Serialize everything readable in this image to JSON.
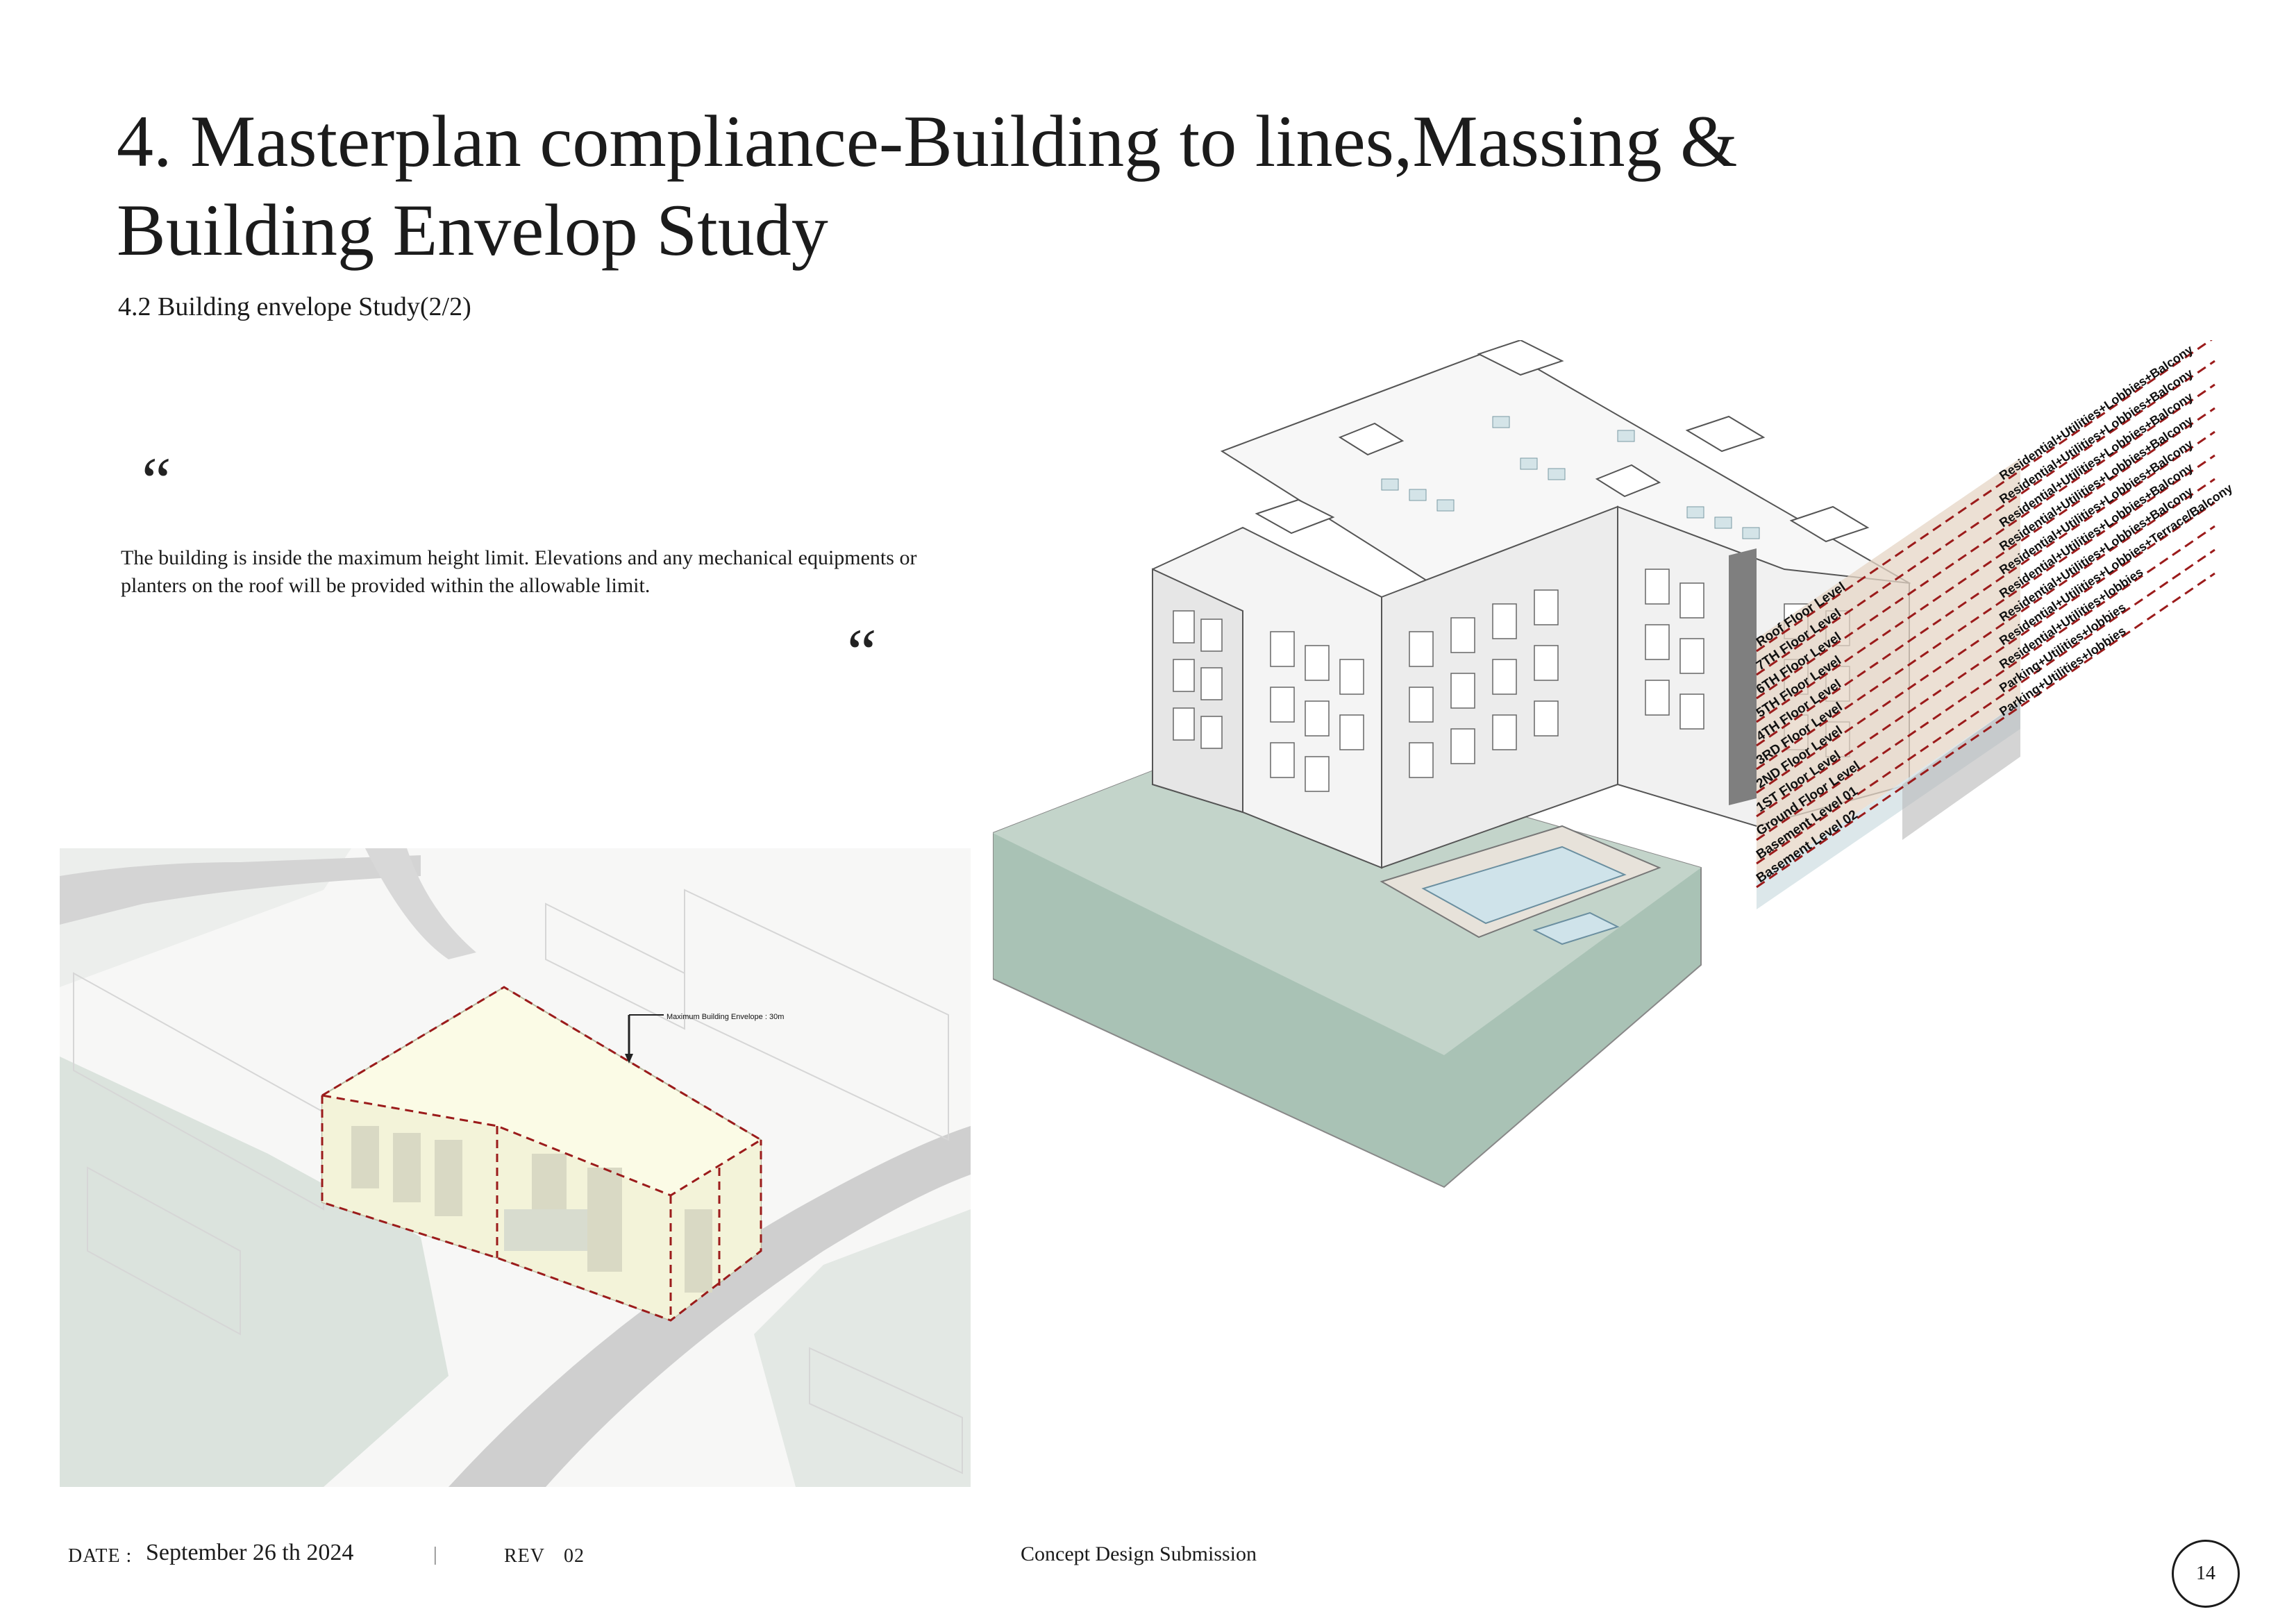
{
  "page": {
    "title_line1": "4. Masterplan compliance-Building to lines,Massing &",
    "title_line2": "Building Envelop Study",
    "subtitle": "4.2  Building envelope Study(2/2)",
    "quote_open": "“",
    "quote_close": "“",
    "body_text": "The building is inside the maximum height limit. Elevations and any mechanical equipments or planters on the roof will be provided within the allowable limit."
  },
  "left_drawing": {
    "envelope_label": "Maximum Building Envelope : 30m"
  },
  "right_drawing": {
    "floor_levels": [
      "Roof Floor Level",
      "7TH Floor Level",
      "6TH Floor Level",
      "5TH Floor Level",
      "4TH Floor Level",
      "3RD Floor Level",
      "2ND Floor Level",
      "1ST Floor Level",
      "Ground Floor Level",
      "Basement Level 01",
      "Basement Level 02"
    ],
    "uses": [
      "Residential+Utilities+Lobbies+Balcony",
      "Residential+Utilities+Lobbies+Balcony",
      "Residential+Utilities+Lobbies+Balcony",
      "Residential+Utilities+Lobbies+Balcony",
      "Residential+Utilities+Lobbies+Balcony",
      "Residential+Utilities+Lobbies+Balcony",
      "Residential+Utilities+Lobbies+Balcony",
      "Residential+Utilities+Lobbies+Terrace/Balcony",
      "Residential+Utilities+lobbies",
      "Parking+Utilities+lobbies",
      "Parking+Utilities+lobbies"
    ]
  },
  "footer": {
    "date_label": "DATE :",
    "date_value": "September 26 th 2024",
    "separator": "|",
    "rev_label": "REV",
    "rev_value": "02",
    "center_text": "Concept Design Submission",
    "page_number": "14"
  },
  "colors": {
    "envelope_dash": "#9b1b1b",
    "ground_green": "#a9c2b5",
    "pool_blue": "#cfe3ea",
    "floor_band": "#e6d6c6"
  }
}
